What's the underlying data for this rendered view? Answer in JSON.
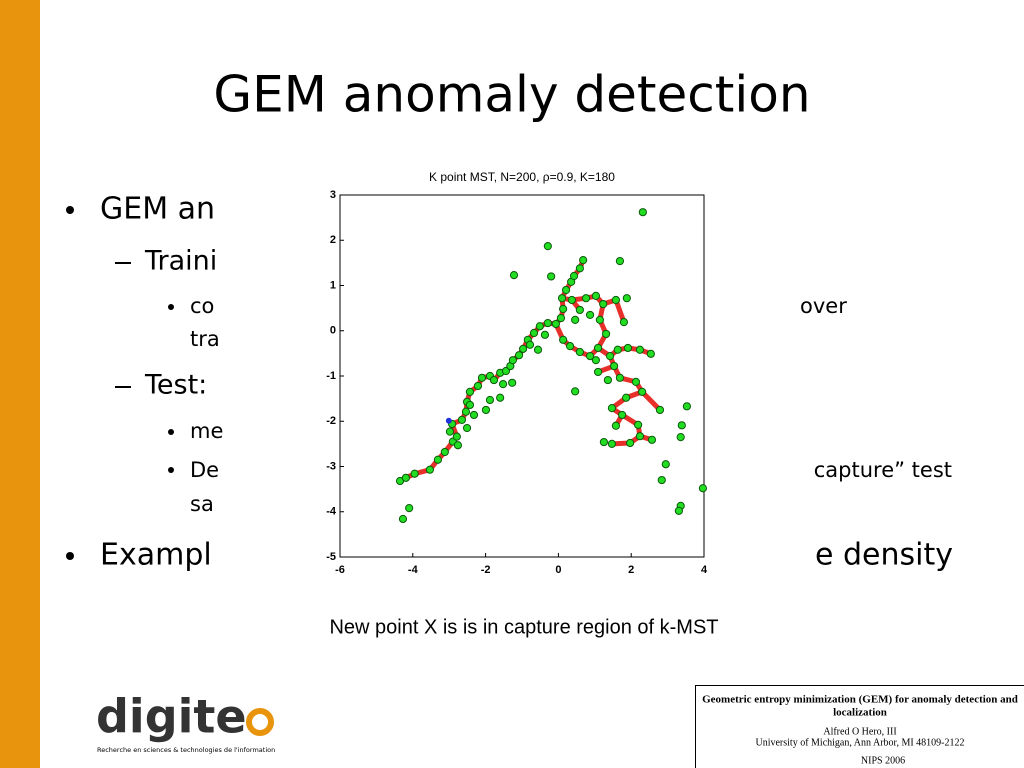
{
  "slide": {
    "title": "GEM anomaly detection",
    "bullets": [
      {
        "text": "GEM an"
      },
      {
        "text": "Traini"
      },
      {
        "text": "co",
        "text_right": "over"
      },
      {
        "text": "tra"
      },
      {
        "text": "Test:"
      },
      {
        "text": "me"
      },
      {
        "text": "De",
        "text_right": "capture” test"
      },
      {
        "text": "sa"
      },
      {
        "text": "Exampl",
        "text_right": "e density"
      }
    ],
    "caption": "New point X is is in capture region of k-MST"
  },
  "logo": {
    "text": "digite",
    "tagline": "Recherche en sciences & technologies de l'information"
  },
  "paper_box": {
    "title_lines": [
      "Geometric entropy minimization (GEM) for anomaly detection and",
      "localization"
    ],
    "author": "Alfred O Hero, III",
    "affiliation": "University of Michigan, Ann Arbor, MI 48109-2122",
    "venue": "NIPS 2006"
  },
  "chart_data": {
    "type": "scatter",
    "title": "K point MST,  N=200, ρ=0.9, K=180",
    "xlim": [
      -6,
      4
    ],
    "ylim": [
      -5,
      3
    ],
    "xticks": [
      -6,
      -4,
      -2,
      0,
      2,
      4
    ],
    "yticks": [
      -5,
      -4,
      -3,
      -2,
      -1,
      0,
      1,
      2,
      3
    ],
    "point_color": "#22dd22",
    "edge_color": "#e8302a",
    "new_point_color": "#2233dd",
    "x": [
      -4.35,
      -4.19,
      -3.95,
      -3.53,
      -3.31,
      -3.12,
      -2.9,
      -2.79,
      -2.92,
      -2.65,
      -2.54,
      -2.51,
      -2.43,
      -2.21,
      -2.1,
      -1.88,
      -1.77,
      -1.6,
      -1.44,
      -1.32,
      -1.25,
      -1.08,
      -0.97,
      -0.84,
      -0.67,
      -0.51,
      -0.29,
      -0.07,
      0.07,
      0.13,
      0.1,
      0.21,
      0.35,
      0.43,
      0.59,
      0.68,
      0.37,
      0.59,
      0.76,
      1.03,
      1.23,
      1.14,
      1.31,
      1.09,
      0.87,
      0.59,
      0.32,
      0.13,
      1.42,
      1.63,
      1.91,
      2.24,
      2.54,
      1.53,
      1.09,
      1.69,
      2.13,
      2.3,
      1.86,
      1.47,
      1.75,
      1.58,
      2.19,
      2.24,
      1.97,
      1.47,
      2.57,
      2.79,
      1.58,
      1.8,
      -2.98,
      -2.43,
      -1.52,
      -1.27,
      -1.6,
      -1.88,
      -1.99,
      -2.32,
      -2.51,
      -2.76,
      -0.78,
      -0.56,
      -0.37,
      0.46,
      0.87,
      1.03,
      1.36,
      2.32,
      -0.29,
      -1.22,
      -0.2,
      1.69,
      1.88,
      0.46,
      1.25,
      3.53,
      3.39,
      3.36,
      2.95,
      2.84,
      3.36,
      3.31,
      3.97,
      -4.1,
      -4.27
    ],
    "y": [
      -3.32,
      -3.25,
      -3.16,
      -3.07,
      -2.85,
      -2.68,
      -2.45,
      -2.34,
      -2.06,
      -1.97,
      -1.79,
      -1.57,
      -1.35,
      -1.22,
      -1.04,
      -1.0,
      -1.09,
      -0.93,
      -0.89,
      -0.78,
      -0.65,
      -0.54,
      -0.4,
      -0.2,
      -0.05,
      0.1,
      0.17,
      0.15,
      0.28,
      0.48,
      0.72,
      0.9,
      1.08,
      1.21,
      1.38,
      1.56,
      0.68,
      0.46,
      0.72,
      0.77,
      0.59,
      0.24,
      -0.07,
      -0.38,
      -0.56,
      -0.47,
      -0.34,
      -0.2,
      -0.56,
      -0.42,
      -0.38,
      -0.42,
      -0.51,
      -0.78,
      -0.91,
      -1.04,
      -1.13,
      -1.35,
      -1.48,
      -1.71,
      -1.86,
      -2.1,
      -2.08,
      -2.33,
      -2.48,
      -2.5,
      -2.41,
      -1.75,
      0.68,
      0.19,
      -2.23,
      -1.64,
      -1.18,
      -1.15,
      -1.48,
      -1.53,
      -1.75,
      -1.86,
      -2.15,
      -2.53,
      -0.31,
      -0.42,
      -0.09,
      0.24,
      0.35,
      -0.65,
      -1.09,
      2.62,
      1.87,
      1.23,
      1.2,
      1.54,
      0.72,
      -1.34,
      -2.46,
      -1.67,
      -2.09,
      -2.35,
      -2.95,
      -3.3,
      -3.87,
      -3.98,
      -3.48,
      -3.92,
      -4.16
    ],
    "edges": [
      [
        0,
        1
      ],
      [
        1,
        2
      ],
      [
        2,
        3
      ],
      [
        3,
        4
      ],
      [
        4,
        5
      ],
      [
        5,
        6
      ],
      [
        6,
        7
      ],
      [
        7,
        8
      ],
      [
        8,
        9
      ],
      [
        9,
        10
      ],
      [
        10,
        11
      ],
      [
        11,
        12
      ],
      [
        12,
        13
      ],
      [
        13,
        14
      ],
      [
        14,
        15
      ],
      [
        15,
        16
      ],
      [
        16,
        17
      ],
      [
        17,
        18
      ],
      [
        18,
        19
      ],
      [
        19,
        20
      ],
      [
        20,
        21
      ],
      [
        21,
        22
      ],
      [
        22,
        23
      ],
      [
        23,
        24
      ],
      [
        24,
        25
      ],
      [
        25,
        26
      ],
      [
        26,
        27
      ],
      [
        27,
        28
      ],
      [
        28,
        29
      ],
      [
        29,
        30
      ],
      [
        30,
        31
      ],
      [
        31,
        32
      ],
      [
        32,
        33
      ],
      [
        33,
        34
      ],
      [
        34,
        35
      ],
      [
        30,
        36
      ],
      [
        36,
        37
      ],
      [
        36,
        38
      ],
      [
        38,
        39
      ],
      [
        39,
        40
      ],
      [
        40,
        68
      ],
      [
        68,
        69
      ],
      [
        40,
        41
      ],
      [
        41,
        42
      ],
      [
        42,
        43
      ],
      [
        43,
        44
      ],
      [
        44,
        45
      ],
      [
        45,
        46
      ],
      [
        46,
        47
      ],
      [
        47,
        27
      ],
      [
        43,
        48
      ],
      [
        48,
        49
      ],
      [
        49,
        50
      ],
      [
        50,
        51
      ],
      [
        51,
        52
      ],
      [
        48,
        53
      ],
      [
        53,
        54
      ],
      [
        53,
        55
      ],
      [
        55,
        56
      ],
      [
        56,
        57
      ],
      [
        57,
        58
      ],
      [
        58,
        59
      ],
      [
        59,
        60
      ],
      [
        60,
        61
      ],
      [
        60,
        62
      ],
      [
        62,
        63
      ],
      [
        63,
        64
      ],
      [
        64,
        65
      ],
      [
        63,
        66
      ],
      [
        57,
        67
      ]
    ],
    "new_point": [
      -3.01,
      -1.99
    ]
  }
}
